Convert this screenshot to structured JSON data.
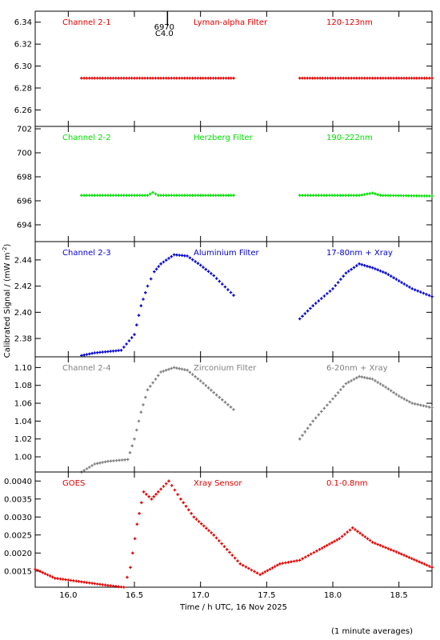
{
  "figure": {
    "ylabel": "Calibrated Signal / (mW m",
    "ylabel_sup": "-2",
    "ylabel_close": ")",
    "xlabel": "Time / h UTC, 16 Nov 2025",
    "footnote": "(1 minute averages)",
    "marker": {
      "x": 16.75,
      "label_top": "6970",
      "label_bottom": "C4.0"
    }
  },
  "chart_data": [
    {
      "type": "scatter",
      "labels": {
        "channel": "Channel 2-1",
        "filter": "Lyman-alpha Filter",
        "band": "120-123nm"
      },
      "color": "#e00000",
      "xlim": [
        15.75,
        18.75
      ],
      "ylim": [
        6.245,
        6.35
      ],
      "yticks": [
        6.26,
        6.28,
        6.3,
        6.32,
        6.34
      ],
      "ydecimals": 2,
      "series": [
        {
          "x": [
            16.1,
            16.4,
            16.7,
            17.0,
            17.25
          ],
          "y": [
            6.289,
            6.289,
            6.289,
            6.289,
            6.289
          ]
        },
        {
          "x": [
            17.75,
            18.0,
            18.3,
            18.5,
            18.75
          ],
          "y": [
            6.289,
            6.289,
            6.289,
            6.289,
            6.289
          ]
        }
      ]
    },
    {
      "type": "scatter",
      "labels": {
        "channel": "Channel 2-2",
        "filter": "Herzberg Filter",
        "band": "190-222nm"
      },
      "color": "#00dd00",
      "xlim": [
        15.75,
        18.75
      ],
      "ylim": [
        692.6,
        702.2
      ],
      "yticks": [
        694,
        696,
        698,
        700,
        702
      ],
      "ydecimals": 0,
      "series": [
        {
          "x": [
            16.1,
            16.6,
            16.64,
            16.68,
            17.0,
            17.25
          ],
          "y": [
            696.45,
            696.45,
            696.7,
            696.45,
            696.45,
            696.45
          ]
        },
        {
          "x": [
            17.75,
            18.2,
            18.3,
            18.36,
            18.75
          ],
          "y": [
            696.45,
            696.45,
            696.65,
            696.45,
            696.4
          ]
        }
      ]
    },
    {
      "type": "scatter",
      "labels": {
        "channel": "Channel 2-3",
        "filter": "Aluminium Filter",
        "band": "17-80nm + Xray"
      },
      "color": "#0000cc",
      "xlim": [
        15.75,
        18.75
      ],
      "ylim": [
        2.366,
        2.454
      ],
      "yticks": [
        2.38,
        2.4,
        2.42,
        2.44
      ],
      "ydecimals": 2,
      "series": [
        {
          "x": [
            16.1,
            16.2,
            16.3,
            16.4,
            16.5,
            16.55,
            16.6,
            16.65,
            16.7,
            16.8,
            16.9,
            17.0,
            17.1,
            17.25
          ],
          "y": [
            2.367,
            2.369,
            2.37,
            2.371,
            2.383,
            2.405,
            2.42,
            2.431,
            2.437,
            2.444,
            2.443,
            2.436,
            2.428,
            2.413
          ]
        },
        {
          "x": [
            17.75,
            17.85,
            18.0,
            18.1,
            18.2,
            18.3,
            18.4,
            18.5,
            18.6,
            18.75
          ],
          "y": [
            2.395,
            2.405,
            2.418,
            2.43,
            2.437,
            2.434,
            2.43,
            2.424,
            2.418,
            2.412
          ]
        }
      ]
    },
    {
      "type": "scatter",
      "labels": {
        "channel": "Channel 2-4",
        "filter": "Zirconium Filter",
        "band": "6-20nm + Xray"
      },
      "color": "#808080",
      "xlim": [
        15.75,
        18.75
      ],
      "ylim": [
        0.983,
        1.112
      ],
      "yticks": [
        1.0,
        1.02,
        1.04,
        1.06,
        1.08,
        1.1
      ],
      "ydecimals": 2,
      "series": [
        {
          "x": [
            16.1,
            16.2,
            16.3,
            16.45,
            16.5,
            16.55,
            16.6,
            16.7,
            16.8,
            16.9,
            17.0,
            17.1,
            17.25
          ],
          "y": [
            0.983,
            0.992,
            0.995,
            0.997,
            1.02,
            1.05,
            1.075,
            1.095,
            1.1,
            1.097,
            1.085,
            1.072,
            1.053
          ]
        },
        {
          "x": [
            17.75,
            17.85,
            18.0,
            18.1,
            18.2,
            18.3,
            18.4,
            18.5,
            18.6,
            18.75
          ],
          "y": [
            1.02,
            1.04,
            1.065,
            1.082,
            1.09,
            1.087,
            1.078,
            1.068,
            1.06,
            1.055
          ]
        }
      ]
    },
    {
      "type": "scatter",
      "labels": {
        "channel": "GOES",
        "filter": "Xray Sensor",
        "band": "0.1-0.8nm"
      },
      "color": "#e00000",
      "xlim": [
        15.75,
        18.75
      ],
      "ylim": [
        0.00105,
        0.00425
      ],
      "yticks": [
        0.0015,
        0.002,
        0.0025,
        0.003,
        0.0035,
        0.004
      ],
      "ydecimals": 4,
      "xticks": [
        16.0,
        16.5,
        17.0,
        17.5,
        18.0,
        18.5
      ],
      "series": [
        {
          "x": [
            15.75,
            15.9,
            16.1,
            16.3,
            16.42,
            16.47,
            16.52,
            16.57,
            16.63,
            16.68,
            16.76,
            16.85,
            16.95,
            17.1,
            17.3,
            17.45,
            17.6,
            17.75,
            17.9,
            18.05,
            18.15,
            18.3,
            18.5,
            18.75
          ],
          "y": [
            0.00155,
            0.0013,
            0.0012,
            0.0011,
            0.00105,
            0.0016,
            0.0028,
            0.0037,
            0.0035,
            0.0037,
            0.004,
            0.0035,
            0.003,
            0.0025,
            0.0017,
            0.0014,
            0.0017,
            0.0018,
            0.0021,
            0.0024,
            0.0027,
            0.0023,
            0.002,
            0.0016
          ]
        }
      ]
    }
  ]
}
